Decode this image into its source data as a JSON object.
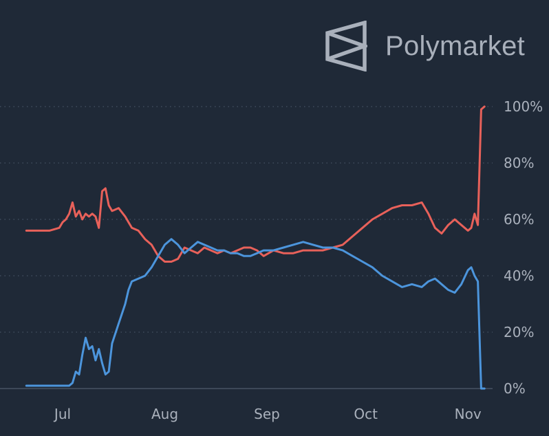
{
  "brand": {
    "name": "Polymarket",
    "logo_icon": "polymarket-logo-icon"
  },
  "chart_data": {
    "type": "line",
    "title": "",
    "xlabel": "",
    "ylabel": "",
    "ylim": [
      0,
      100
    ],
    "x_ticks": [
      "Jul",
      "Aug",
      "Sep",
      "Oct",
      "Nov"
    ],
    "y_ticks": [
      "0%",
      "20%",
      "40%",
      "60%",
      "80%",
      "100%"
    ],
    "grid": "horizontal-dotted",
    "x": [
      "Jun 20",
      "Jun 25",
      "Jun 27",
      "Jun 30",
      "Jul 1",
      "Jul 2",
      "Jul 3",
      "Jul 4",
      "Jul 5",
      "Jul 6",
      "Jul 7",
      "Jul 8",
      "Jul 9",
      "Jul 10",
      "Jul 11",
      "Jul 12",
      "Jul 13",
      "Jul 14",
      "Jul 15",
      "Jul 16",
      "Jul 18",
      "Jul 20",
      "Jul 21",
      "Jul 22",
      "Jul 24",
      "Jul 26",
      "Jul 28",
      "Jul 30",
      "Aug 1",
      "Aug 3",
      "Aug 5",
      "Aug 7",
      "Aug 9",
      "Aug 11",
      "Aug 13",
      "Aug 15",
      "Aug 17",
      "Aug 19",
      "Aug 21",
      "Aug 23",
      "Aug 25",
      "Aug 27",
      "Aug 29",
      "Aug 31",
      "Sep 3",
      "Sep 6",
      "Sep 9",
      "Sep 12",
      "Sep 15",
      "Sep 18",
      "Sep 21",
      "Sep 24",
      "Sep 27",
      "Sep 30",
      "Oct 3",
      "Oct 6",
      "Oct 9",
      "Oct 12",
      "Oct 15",
      "Oct 18",
      "Oct 20",
      "Oct 22",
      "Oct 24",
      "Oct 26",
      "Oct 28",
      "Oct 30",
      "Nov 1",
      "Nov 2",
      "Nov 3",
      "Nov 4",
      "Nov 5",
      "Nov 6"
    ],
    "series": [
      {
        "color": "#e8615a",
        "values": [
          56,
          56,
          56,
          57,
          59,
          60,
          62,
          66,
          61,
          63,
          60,
          62,
          61,
          62,
          61,
          57,
          70,
          71,
          65,
          63,
          64,
          61,
          59,
          57,
          56,
          53,
          51,
          47,
          45,
          45,
          46,
          50,
          49,
          48,
          50,
          49,
          48,
          49,
          48,
          49,
          50,
          50,
          49,
          47,
          49,
          48,
          48,
          49,
          49,
          49,
          50,
          51,
          54,
          57,
          60,
          62,
          64,
          65,
          65,
          66,
          62,
          57,
          55,
          58,
          60,
          58,
          56,
          57,
          62,
          58,
          99,
          100
        ]
      },
      {
        "color": "#4c95dc",
        "values": [
          1,
          1,
          1,
          1,
          1,
          1,
          1,
          2,
          6,
          5,
          12,
          18,
          14,
          15,
          10,
          14,
          9,
          5,
          6,
          16,
          23,
          30,
          35,
          38,
          39,
          40,
          43,
          47,
          51,
          53,
          51,
          48,
          50,
          52,
          51,
          50,
          49,
          49,
          48,
          48,
          47,
          47,
          48,
          49,
          49,
          50,
          51,
          52,
          51,
          50,
          50,
          49,
          47,
          45,
          43,
          40,
          38,
          36,
          37,
          36,
          38,
          39,
          37,
          35,
          34,
          37,
          42,
          43,
          40,
          38,
          0,
          0
        ]
      }
    ]
  }
}
